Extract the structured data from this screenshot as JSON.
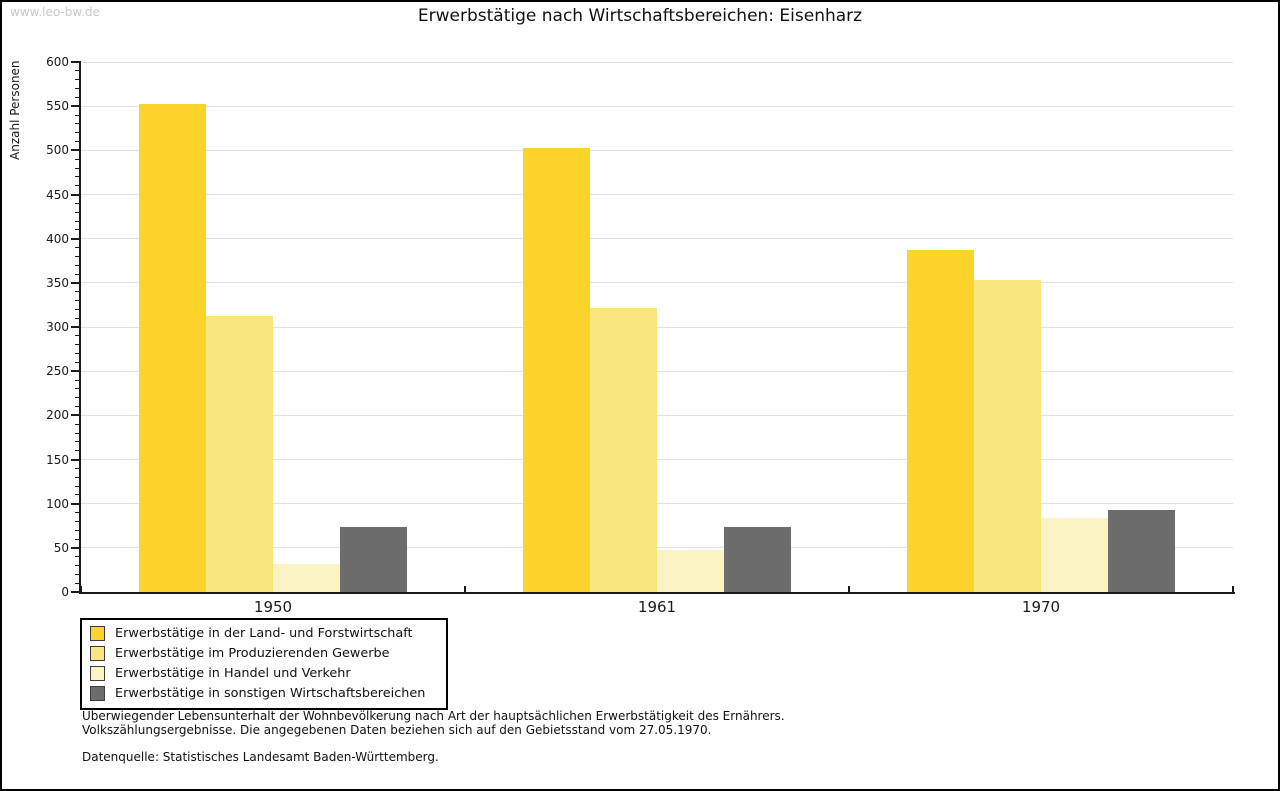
{
  "watermark": "www.leo-bw.de",
  "title": "Erwerbstätige nach Wirtschaftsbereichen: Eisenharz",
  "chart_data": {
    "type": "bar",
    "title": "Erwerbstätige nach Wirtschaftsbereichen: Eisenharz",
    "xlabel": "",
    "ylabel": "Anzahl Personen",
    "ylim": [
      0,
      600
    ],
    "ytick_step": 50,
    "minor_tick_step": 10,
    "grid": true,
    "legend_position": "bottom-left",
    "categories": [
      "1950",
      "1961",
      "1970"
    ],
    "series": [
      {
        "name": "Erwerbstätige in der Land- und Forstwirtschaft",
        "color": "#fcd32b",
        "values": [
          552,
          503,
          387
        ]
      },
      {
        "name": "Erwerbstätige im Produzierenden Gewerbe",
        "color": "#fae67e",
        "values": [
          312,
          322,
          353
        ]
      },
      {
        "name": "Erwerbstätige in Handel und Verkehr",
        "color": "#fcf3c5",
        "values": [
          32,
          47,
          84
        ]
      },
      {
        "name": "Erwerbstätige in sonstigen Wirtschaftsbereichen",
        "color": "#6c6c6c",
        "values": [
          74,
          74,
          93
        ]
      }
    ],
    "axis_color": "#1a1a1a",
    "grid_color": "#e3e3e3"
  },
  "footnotes": {
    "line1": "Überwiegender Lebensunterhalt der Wohnbevölkerung nach Art der hauptsächlichen Erwerbstätigkeit des Ernährers.",
    "line2": "Volkszählungsergebnisse. Die angegebenen Daten beziehen sich auf den Gebietsstand vom 27.05.1970.",
    "source": "Datenquelle: Statistisches Landesamt Baden-Württemberg."
  }
}
